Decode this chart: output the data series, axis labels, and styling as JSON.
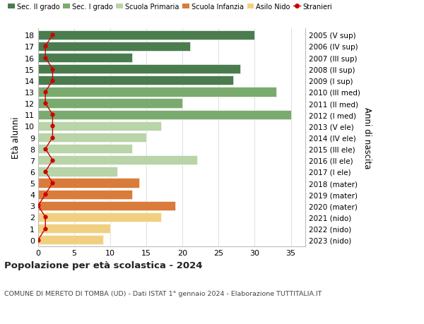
{
  "ages": [
    18,
    17,
    16,
    15,
    14,
    13,
    12,
    11,
    10,
    9,
    8,
    7,
    6,
    5,
    4,
    3,
    2,
    1,
    0
  ],
  "years": [
    "2005 (V sup)",
    "2006 (IV sup)",
    "2007 (III sup)",
    "2008 (II sup)",
    "2009 (I sup)",
    "2010 (III med)",
    "2011 (II med)",
    "2012 (I med)",
    "2013 (V ele)",
    "2014 (IV ele)",
    "2015 (III ele)",
    "2016 (II ele)",
    "2017 (I ele)",
    "2018 (mater)",
    "2019 (mater)",
    "2020 (mater)",
    "2021 (nido)",
    "2022 (nido)",
    "2023 (nido)"
  ],
  "bar_values": [
    30,
    21,
    13,
    28,
    27,
    33,
    20,
    35,
    17,
    15,
    13,
    22,
    11,
    14,
    13,
    19,
    17,
    10,
    9
  ],
  "bar_colors": [
    "#4a7c4e",
    "#4a7c4e",
    "#4a7c4e",
    "#4a7c4e",
    "#4a7c4e",
    "#7aab6e",
    "#7aab6e",
    "#7aab6e",
    "#b8d4a8",
    "#b8d4a8",
    "#b8d4a8",
    "#b8d4a8",
    "#b8d4a8",
    "#d97b3a",
    "#d97b3a",
    "#d97b3a",
    "#f0d080",
    "#f0d080",
    "#f0d080"
  ],
  "stranieri_values": [
    2,
    1,
    1,
    2,
    2,
    1,
    1,
    2,
    2,
    2,
    1,
    2,
    1,
    2,
    1,
    0,
    1,
    1,
    0
  ],
  "legend_labels": [
    "Sec. II grado",
    "Sec. I grado",
    "Scuola Primaria",
    "Scuola Infanzia",
    "Asilo Nido",
    "Stranieri"
  ],
  "legend_colors": [
    "#4a7c4e",
    "#7aab6e",
    "#b8d4a8",
    "#d97b3a",
    "#f0d080",
    "#cc0000"
  ],
  "ylabel": "Età alunni",
  "ylabel_right": "Anni di nascita",
  "title": "Popolazione per età scolastica - 2024",
  "subtitle": "COMUNE DI MERETO DI TOMBA (UD) - Dati ISTAT 1° gennaio 2024 - Elaborazione TUTTITALIA.IT",
  "xlim": [
    0,
    37
  ],
  "background_color": "#ffffff",
  "grid_color": "#dddddd",
  "stranieri_color": "#cc0000"
}
